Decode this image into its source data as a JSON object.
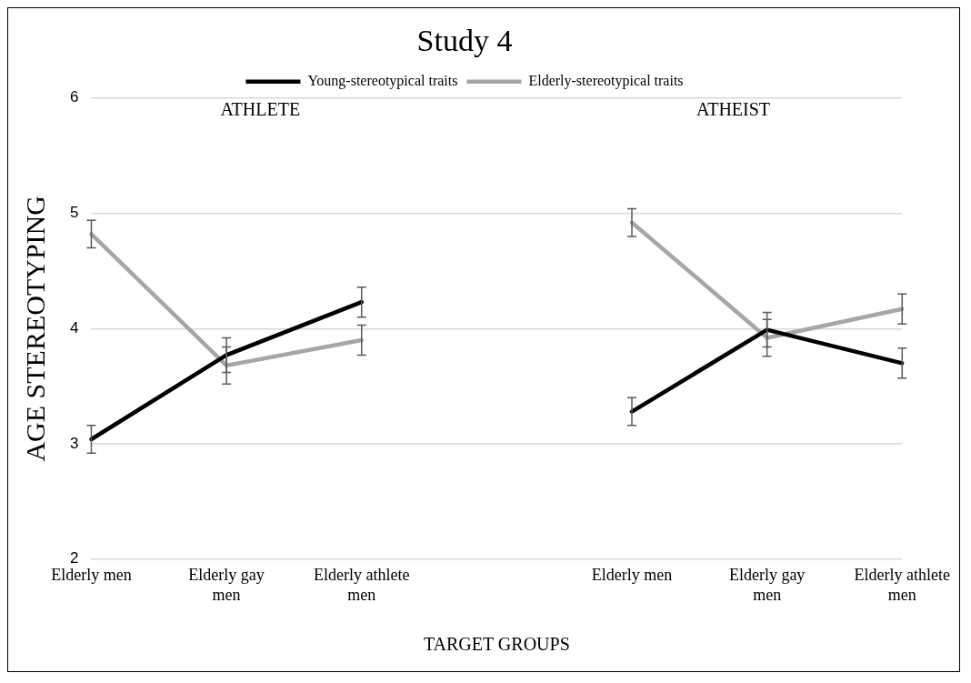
{
  "chart_data": {
    "type": "line",
    "title": "Study 4",
    "xlabel": "TARGET GROUPS",
    "ylabel": "AGE STEREOTYPING",
    "categories": [
      "Elderly men",
      "Elderly gay men",
      "Elderly athlete men",
      null,
      "Elderly men",
      "Elderly gay men",
      "Elderly athlete men"
    ],
    "series": [
      {
        "name": "Young-stereotypical traits",
        "color": "#000000",
        "values": [
          3.04,
          3.77,
          4.23,
          null,
          3.28,
          3.99,
          3.7
        ],
        "errors": [
          0.12,
          0.15,
          0.13,
          null,
          0.12,
          0.15,
          0.13
        ]
      },
      {
        "name": "Elderly-stereotypical traits",
        "color": "#a6a6a6",
        "values": [
          4.82,
          3.68,
          3.9,
          null,
          4.92,
          3.92,
          4.17
        ],
        "errors": [
          0.12,
          0.16,
          0.13,
          null,
          0.12,
          0.16,
          0.13
        ]
      }
    ],
    "annotations": [
      "ATHLETE",
      "ATHEIST"
    ],
    "ylim": [
      2,
      6
    ],
    "yticks": [
      2,
      3,
      4,
      5,
      6
    ],
    "grid": "y",
    "legend": "top",
    "marker": "none",
    "line_style": "solid"
  }
}
